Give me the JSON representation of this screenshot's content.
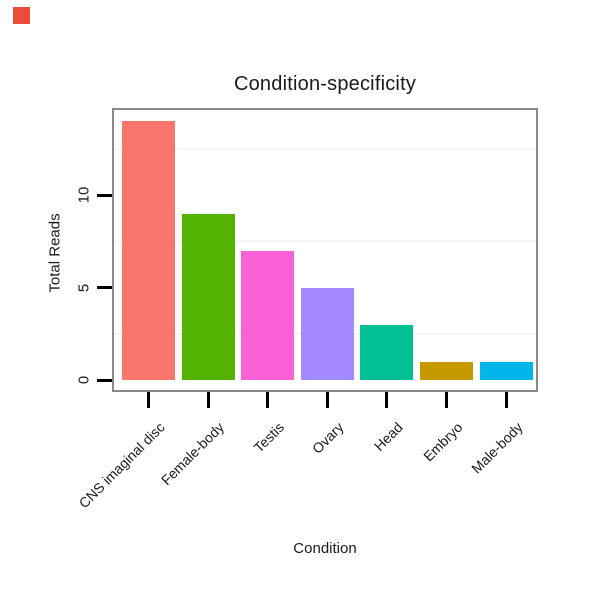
{
  "decorations": {
    "corner_marker_color": "#ee4b3c"
  },
  "chart_data": {
    "type": "bar",
    "title": "Condition-specificity",
    "xlabel": "Condition",
    "ylabel": "Total Reads",
    "categories": [
      "CNS imaginal disc",
      "Female-body",
      "Testis",
      "Ovary",
      "Head",
      "Embryo",
      "Male-body"
    ],
    "values": [
      14,
      9,
      7,
      5,
      3,
      1,
      1
    ],
    "bar_colors": [
      "#F8766D",
      "#53B400",
      "#FB61D7",
      "#A58AFF",
      "#00C094",
      "#C49A00",
      "#00B6EB"
    ],
    "ytick_values": [
      0,
      5,
      10
    ],
    "ytick_labels": [
      "0",
      "5",
      "10"
    ],
    "minor_gridlines": [
      2.5,
      7.5,
      12.5
    ],
    "ylim": [
      0,
      14.7
    ],
    "grid": "horizontal minor gridlines only",
    "legend": "none",
    "panel_border_color": "#898989",
    "tick_color": "#000000",
    "gridline_color": "#f5f5f5",
    "text_color": "#1a1a1a"
  }
}
